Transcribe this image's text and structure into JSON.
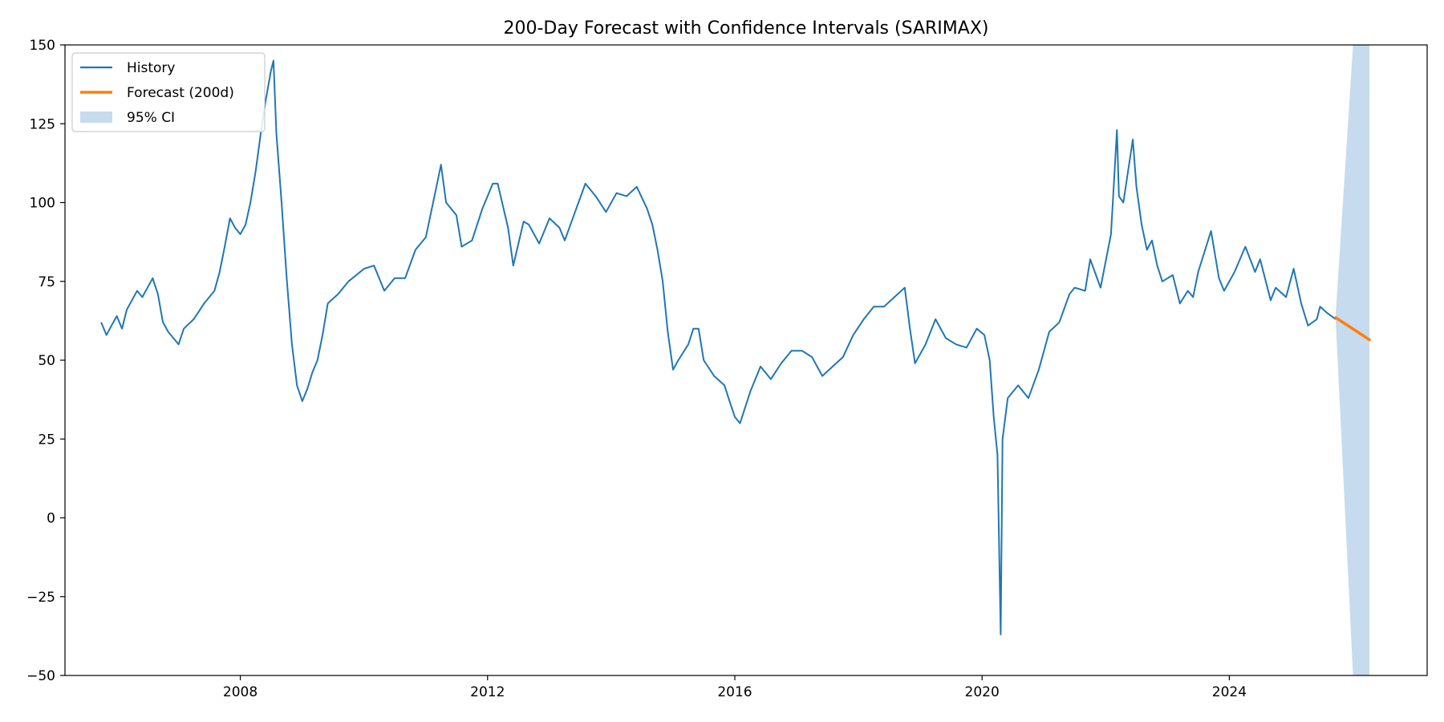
{
  "chart_data": {
    "type": "line",
    "title": "200-Day Forecast with Confidence Intervals (SARIMAX)",
    "xlabel": "",
    "ylabel": "",
    "x_axis_type": "date",
    "xlim": [
      "2005-03-01",
      "2027-03-15"
    ],
    "ylim": [
      -50,
      150
    ],
    "x_ticks": [
      {
        "date": "2008-01-01",
        "label": "2008"
      },
      {
        "date": "2012-01-01",
        "label": "2012"
      },
      {
        "date": "2016-01-01",
        "label": "2016"
      },
      {
        "date": "2020-01-01",
        "label": "2020"
      },
      {
        "date": "2024-01-01",
        "label": "2024"
      }
    ],
    "y_ticks": [
      {
        "value": 150,
        "label": "150"
      },
      {
        "value": 125,
        "label": "125"
      },
      {
        "value": 100,
        "label": "100"
      },
      {
        "value": 75,
        "label": "75"
      },
      {
        "value": 50,
        "label": "50"
      },
      {
        "value": 25,
        "label": "25"
      },
      {
        "value": 0,
        "label": "0"
      },
      {
        "value": -25,
        "label": "−25"
      },
      {
        "value": -50,
        "label": "−50"
      }
    ],
    "grid": false,
    "legend": {
      "position": "top-left",
      "entries": [
        {
          "label": "History",
          "kind": "line",
          "color": "#1f77b4"
        },
        {
          "label": "Forecast (200d)",
          "kind": "line",
          "color": "#ff7f0e"
        },
        {
          "label": "95% CI",
          "kind": "area",
          "color": "#c6dbed"
        }
      ]
    },
    "series": [
      {
        "name": "History",
        "color": "#1f77b4",
        "points": [
          [
            "2005-10-01",
            62
          ],
          [
            "2005-11-01",
            58
          ],
          [
            "2005-12-01",
            61
          ],
          [
            "2006-01-01",
            64
          ],
          [
            "2006-02-01",
            60
          ],
          [
            "2006-03-01",
            66
          ],
          [
            "2006-05-01",
            72
          ],
          [
            "2006-06-01",
            70
          ],
          [
            "2006-08-01",
            76
          ],
          [
            "2006-09-01",
            71
          ],
          [
            "2006-10-01",
            62
          ],
          [
            "2006-11-01",
            59
          ],
          [
            "2007-01-01",
            55
          ],
          [
            "2007-02-01",
            60
          ],
          [
            "2007-04-01",
            63
          ],
          [
            "2007-06-01",
            68
          ],
          [
            "2007-08-01",
            72
          ],
          [
            "2007-09-01",
            78
          ],
          [
            "2007-10-01",
            86
          ],
          [
            "2007-11-01",
            95
          ],
          [
            "2007-12-01",
            92
          ],
          [
            "2008-01-01",
            90
          ],
          [
            "2008-02-01",
            93
          ],
          [
            "2008-03-01",
            100
          ],
          [
            "2008-04-01",
            110
          ],
          [
            "2008-05-01",
            122
          ],
          [
            "2008-06-01",
            133
          ],
          [
            "2008-07-01",
            142
          ],
          [
            "2008-07-15",
            145
          ],
          [
            "2008-08-01",
            122
          ],
          [
            "2008-09-01",
            100
          ],
          [
            "2008-10-01",
            76
          ],
          [
            "2008-11-01",
            55
          ],
          [
            "2008-12-01",
            42
          ],
          [
            "2009-01-01",
            37
          ],
          [
            "2009-02-01",
            41
          ],
          [
            "2009-03-01",
            46
          ],
          [
            "2009-04-01",
            50
          ],
          [
            "2009-05-01",
            58
          ],
          [
            "2009-06-01",
            68
          ],
          [
            "2009-08-01",
            71
          ],
          [
            "2009-10-01",
            75
          ],
          [
            "2010-01-01",
            79
          ],
          [
            "2010-03-01",
            80
          ],
          [
            "2010-05-01",
            72
          ],
          [
            "2010-07-01",
            76
          ],
          [
            "2010-09-01",
            76
          ],
          [
            "2010-11-01",
            85
          ],
          [
            "2011-01-01",
            89
          ],
          [
            "2011-03-01",
            104
          ],
          [
            "2011-04-01",
            112
          ],
          [
            "2011-05-01",
            100
          ],
          [
            "2011-07-01",
            96
          ],
          [
            "2011-08-01",
            86
          ],
          [
            "2011-10-01",
            88
          ],
          [
            "2011-12-01",
            98
          ],
          [
            "2012-02-01",
            106
          ],
          [
            "2012-03-01",
            106
          ],
          [
            "2012-05-01",
            92
          ],
          [
            "2012-06-01",
            80
          ],
          [
            "2012-08-01",
            94
          ],
          [
            "2012-09-01",
            93
          ],
          [
            "2012-11-01",
            87
          ],
          [
            "2013-01-01",
            95
          ],
          [
            "2013-03-01",
            92
          ],
          [
            "2013-04-01",
            88
          ],
          [
            "2013-06-01",
            97
          ],
          [
            "2013-08-01",
            106
          ],
          [
            "2013-10-01",
            102
          ],
          [
            "2013-12-01",
            97
          ],
          [
            "2014-02-01",
            103
          ],
          [
            "2014-04-01",
            102
          ],
          [
            "2014-06-01",
            105
          ],
          [
            "2014-08-01",
            98
          ],
          [
            "2014-09-01",
            93
          ],
          [
            "2014-10-01",
            85
          ],
          [
            "2014-11-01",
            75
          ],
          [
            "2014-12-01",
            59
          ],
          [
            "2015-01-01",
            47
          ],
          [
            "2015-02-01",
            50
          ],
          [
            "2015-04-01",
            55
          ],
          [
            "2015-05-01",
            60
          ],
          [
            "2015-06-01",
            60
          ],
          [
            "2015-07-01",
            50
          ],
          [
            "2015-09-01",
            45
          ],
          [
            "2015-11-01",
            42
          ],
          [
            "2015-12-01",
            37
          ],
          [
            "2016-01-01",
            32
          ],
          [
            "2016-02-01",
            30
          ],
          [
            "2016-04-01",
            40
          ],
          [
            "2016-06-01",
            48
          ],
          [
            "2016-08-01",
            44
          ],
          [
            "2016-10-01",
            49
          ],
          [
            "2016-12-01",
            53
          ],
          [
            "2017-02-01",
            53
          ],
          [
            "2017-04-01",
            51
          ],
          [
            "2017-06-01",
            45
          ],
          [
            "2017-08-01",
            48
          ],
          [
            "2017-10-01",
            51
          ],
          [
            "2017-12-01",
            58
          ],
          [
            "2018-02-01",
            63
          ],
          [
            "2018-04-01",
            67
          ],
          [
            "2018-06-01",
            67
          ],
          [
            "2018-08-01",
            70
          ],
          [
            "2018-10-01",
            73
          ],
          [
            "2018-11-01",
            60
          ],
          [
            "2018-12-01",
            49
          ],
          [
            "2019-02-01",
            55
          ],
          [
            "2019-04-01",
            63
          ],
          [
            "2019-06-01",
            57
          ],
          [
            "2019-08-01",
            55
          ],
          [
            "2019-10-01",
            54
          ],
          [
            "2019-12-01",
            60
          ],
          [
            "2020-01-15",
            58
          ],
          [
            "2020-02-15",
            50
          ],
          [
            "2020-03-10",
            32
          ],
          [
            "2020-04-01",
            20
          ],
          [
            "2020-04-20",
            -37
          ],
          [
            "2020-05-01",
            25
          ],
          [
            "2020-06-01",
            38
          ],
          [
            "2020-08-01",
            42
          ],
          [
            "2020-10-01",
            38
          ],
          [
            "2020-12-01",
            47
          ],
          [
            "2021-02-01",
            59
          ],
          [
            "2021-04-01",
            62
          ],
          [
            "2021-06-01",
            71
          ],
          [
            "2021-07-01",
            73
          ],
          [
            "2021-09-01",
            72
          ],
          [
            "2021-10-01",
            82
          ],
          [
            "2021-12-01",
            73
          ],
          [
            "2022-02-01",
            90
          ],
          [
            "2022-03-08",
            123
          ],
          [
            "2022-03-20",
            102
          ],
          [
            "2022-04-15",
            100
          ],
          [
            "2022-06-10",
            120
          ],
          [
            "2022-07-01",
            105
          ],
          [
            "2022-08-01",
            93
          ],
          [
            "2022-09-01",
            85
          ],
          [
            "2022-10-01",
            88
          ],
          [
            "2022-11-01",
            80
          ],
          [
            "2022-12-01",
            75
          ],
          [
            "2023-02-01",
            77
          ],
          [
            "2023-03-15",
            68
          ],
          [
            "2023-05-01",
            72
          ],
          [
            "2023-06-01",
            70
          ],
          [
            "2023-07-01",
            78
          ],
          [
            "2023-09-15",
            91
          ],
          [
            "2023-11-01",
            76
          ],
          [
            "2023-12-01",
            72
          ],
          [
            "2024-02-01",
            78
          ],
          [
            "2024-04-05",
            86
          ],
          [
            "2024-06-01",
            78
          ],
          [
            "2024-07-01",
            82
          ],
          [
            "2024-09-01",
            69
          ],
          [
            "2024-10-01",
            73
          ],
          [
            "2024-12-01",
            70
          ],
          [
            "2025-01-15",
            79
          ],
          [
            "2025-03-01",
            68
          ],
          [
            "2025-04-10",
            61
          ],
          [
            "2025-06-01",
            63
          ],
          [
            "2025-06-20",
            67
          ],
          [
            "2025-08-01",
            65
          ],
          [
            "2025-09-20",
            63
          ]
        ]
      },
      {
        "name": "Forecast (200d)",
        "color": "#ff7f0e",
        "points": [
          [
            "2025-09-20",
            63.5
          ],
          [
            "2026-04-08",
            56.5
          ]
        ]
      }
    ],
    "confidence_band": {
      "name": "95% CI",
      "color": "#c6dbed",
      "x": [
        "2025-09-20",
        "2026-01-01",
        "2026-04-08"
      ],
      "lower": [
        63,
        -50,
        -50
      ],
      "upper": [
        64,
        150,
        150
      ]
    }
  }
}
